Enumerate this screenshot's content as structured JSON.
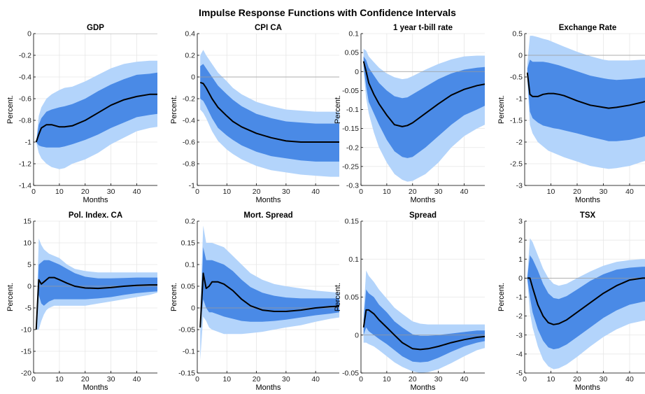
{
  "title": "Impulse Response Functions with Confidence Intervals",
  "colors": {
    "outer_band": "#b3d4fb",
    "inner_band": "#4a8ae6",
    "median": "#000000",
    "zero_line": "#9a9a9a",
    "grid": "#e6e6e6"
  },
  "chart_data": [
    {
      "type": "area",
      "title": "GDP",
      "xlabel": "Months",
      "ylabel": "Percent.",
      "xlim": [
        0,
        48
      ],
      "ylim": [
        -1.4,
        0
      ],
      "xticks": [
        0,
        10,
        20,
        30,
        40
      ],
      "yticks": [
        -1.4,
        -1.2,
        -1,
        -0.8,
        -0.6,
        -0.4,
        -0.2,
        0
      ],
      "x": [
        1,
        2,
        3,
        5,
        7,
        10,
        12,
        15,
        20,
        25,
        30,
        35,
        40,
        45,
        48
      ],
      "median": [
        -1.0,
        -0.93,
        -0.87,
        -0.84,
        -0.84,
        -0.86,
        -0.86,
        -0.85,
        -0.8,
        -0.73,
        -0.66,
        -0.61,
        -0.58,
        -0.56,
        -0.56
      ],
      "inner_lower": [
        -1.0,
        -1.03,
        -1.04,
        -1.05,
        -1.05,
        -1.05,
        -1.04,
        -1.02,
        -0.98,
        -0.93,
        -0.87,
        -0.82,
        -0.77,
        -0.75,
        -0.74
      ],
      "inner_upper": [
        -1.0,
        -0.84,
        -0.78,
        -0.72,
        -0.7,
        -0.68,
        -0.67,
        -0.65,
        -0.6,
        -0.53,
        -0.47,
        -0.42,
        -0.38,
        -0.37,
        -0.36
      ],
      "outer_lower": [
        -1.0,
        -1.1,
        -1.15,
        -1.2,
        -1.23,
        -1.25,
        -1.24,
        -1.2,
        -1.16,
        -1.1,
        -1.02,
        -0.96,
        -0.9,
        -0.87,
        -0.86
      ],
      "outer_upper": [
        -1.0,
        -0.76,
        -0.68,
        -0.6,
        -0.56,
        -0.52,
        -0.5,
        -0.49,
        -0.44,
        -0.38,
        -0.32,
        -0.28,
        -0.26,
        -0.25,
        -0.25
      ]
    },
    {
      "type": "area",
      "title": "CPI CA",
      "xlabel": "Months",
      "ylabel": "Percent.",
      "xlim": [
        0,
        48
      ],
      "ylim": [
        -1,
        0.4
      ],
      "xticks": [
        0,
        10,
        20,
        30,
        40
      ],
      "yticks": [
        -1,
        -0.8,
        -0.6,
        -0.4,
        -0.2,
        0,
        0.2,
        0.4
      ],
      "x": [
        1,
        2,
        3,
        5,
        7,
        10,
        12,
        15,
        20,
        25,
        30,
        35,
        40,
        45,
        48
      ],
      "median": [
        -0.05,
        -0.06,
        -0.1,
        -0.2,
        -0.28,
        -0.36,
        -0.41,
        -0.46,
        -0.52,
        -0.56,
        -0.59,
        -0.6,
        -0.6,
        -0.6,
        -0.6
      ],
      "inner_lower": [
        -0.2,
        -0.22,
        -0.27,
        -0.38,
        -0.47,
        -0.54,
        -0.58,
        -0.63,
        -0.69,
        -0.73,
        -0.75,
        -0.77,
        -0.78,
        -0.78,
        -0.78
      ],
      "inner_upper": [
        0.1,
        0.12,
        0.08,
        0.0,
        -0.08,
        -0.16,
        -0.21,
        -0.27,
        -0.34,
        -0.38,
        -0.41,
        -0.42,
        -0.43,
        -0.43,
        -0.43
      ],
      "outer_lower": [
        -0.3,
        -0.33,
        -0.38,
        -0.5,
        -0.59,
        -0.67,
        -0.71,
        -0.76,
        -0.82,
        -0.86,
        -0.88,
        -0.9,
        -0.91,
        -0.92,
        -0.92
      ],
      "outer_upper": [
        0.2,
        0.25,
        0.2,
        0.12,
        0.04,
        -0.04,
        -0.1,
        -0.16,
        -0.23,
        -0.27,
        -0.3,
        -0.31,
        -0.32,
        -0.32,
        -0.32
      ]
    },
    {
      "type": "area",
      "title": "1 year t-bill rate",
      "xlabel": "Months",
      "ylabel": "Percent.",
      "xlim": [
        0,
        48
      ],
      "ylim": [
        -0.3,
        0.1
      ],
      "xticks": [
        0,
        10,
        20,
        30,
        40
      ],
      "yticks": [
        -0.3,
        -0.25,
        -0.2,
        -0.15,
        -0.1,
        -0.05,
        0,
        0.05,
        0.1
      ],
      "x": [
        1,
        2,
        3,
        5,
        7,
        10,
        13,
        16,
        18,
        20,
        25,
        30,
        35,
        40,
        45,
        48
      ],
      "median": [
        0.027,
        0.0,
        -0.03,
        -0.06,
        -0.085,
        -0.115,
        -0.14,
        -0.145,
        -0.142,
        -0.135,
        -0.11,
        -0.085,
        -0.062,
        -0.047,
        -0.037,
        -0.033
      ],
      "inner_lower": [
        0.015,
        -0.04,
        -0.08,
        -0.11,
        -0.14,
        -0.18,
        -0.21,
        -0.225,
        -0.228,
        -0.225,
        -0.2,
        -0.17,
        -0.14,
        -0.115,
        -0.1,
        -0.09
      ],
      "inner_upper": [
        0.04,
        0.03,
        0.01,
        -0.01,
        -0.03,
        -0.05,
        -0.065,
        -0.07,
        -0.068,
        -0.06,
        -0.04,
        -0.02,
        -0.005,
        0.005,
        0.01,
        0.012
      ],
      "outer_lower": [
        0.0,
        -0.07,
        -0.11,
        -0.16,
        -0.2,
        -0.24,
        -0.27,
        -0.285,
        -0.29,
        -0.288,
        -0.27,
        -0.24,
        -0.2,
        -0.17,
        -0.15,
        -0.14
      ],
      "outer_upper": [
        0.06,
        0.055,
        0.04,
        0.025,
        0.01,
        -0.005,
        -0.015,
        -0.02,
        -0.018,
        -0.012,
        0.005,
        0.02,
        0.032,
        0.04,
        0.042,
        0.042
      ]
    },
    {
      "type": "area",
      "title": "Exchange Rate",
      "xlabel": "Months",
      "ylabel": "Percent.",
      "xlim": [
        0,
        48
      ],
      "ylim": [
        -3,
        0.5
      ],
      "xticks": [
        10,
        20,
        30,
        40
      ],
      "yticks": [
        -3,
        -2.5,
        -2,
        -1.5,
        -1,
        -0.5,
        0,
        0.5
      ],
      "x": [
        1,
        2,
        3,
        5,
        7,
        9,
        11,
        13,
        15,
        20,
        25,
        30,
        32,
        35,
        40,
        45,
        48
      ],
      "median": [
        -0.4,
        -0.9,
        -0.95,
        -0.95,
        -0.9,
        -0.88,
        -0.88,
        -0.9,
        -0.93,
        -1.05,
        -1.15,
        -1.2,
        -1.22,
        -1.2,
        -1.15,
        -1.08,
        -1.02
      ],
      "inner_lower": [
        -0.5,
        -1.3,
        -1.45,
        -1.55,
        -1.62,
        -1.65,
        -1.68,
        -1.7,
        -1.73,
        -1.8,
        -1.88,
        -1.95,
        -1.98,
        -1.98,
        -1.95,
        -1.88,
        -1.82
      ],
      "inner_upper": [
        -0.3,
        -0.1,
        -0.15,
        -0.15,
        -0.15,
        -0.17,
        -0.2,
        -0.23,
        -0.27,
        -0.37,
        -0.47,
        -0.53,
        -0.55,
        -0.57,
        -0.55,
        -0.52,
        -0.5
      ],
      "outer_lower": [
        -0.6,
        -1.6,
        -1.8,
        -2.0,
        -2.1,
        -2.2,
        -2.25,
        -2.3,
        -2.35,
        -2.45,
        -2.55,
        -2.6,
        -2.62,
        -2.6,
        -2.55,
        -2.45,
        -2.4
      ],
      "outer_upper": [
        -0.2,
        0.45,
        0.45,
        0.42,
        0.38,
        0.35,
        0.3,
        0.25,
        0.2,
        0.08,
        -0.02,
        -0.1,
        -0.12,
        -0.12,
        -0.12,
        -0.1,
        -0.1
      ]
    },
    {
      "type": "area",
      "title": "Pol. Index. CA",
      "xlabel": "Months",
      "ylabel": "Percent.",
      "xlim": [
        0,
        48
      ],
      "ylim": [
        -20,
        15
      ],
      "xticks": [
        0,
        10,
        20,
        30,
        40
      ],
      "yticks": [
        -20,
        -15,
        -10,
        -5,
        0,
        5,
        10,
        15
      ],
      "x": [
        1,
        2,
        3,
        4,
        5,
        6,
        8,
        10,
        13,
        16,
        20,
        25,
        30,
        35,
        40,
        45,
        48
      ],
      "median": [
        -10,
        1.5,
        0.5,
        1.0,
        1.5,
        2.0,
        2.0,
        1.5,
        0.7,
        0.0,
        -0.4,
        -0.5,
        -0.3,
        0.0,
        0.2,
        0.3,
        0.3
      ],
      "inner_lower": [
        -10,
        -2,
        -4,
        -4.5,
        -4,
        -3.5,
        -3,
        -3,
        -3,
        -3,
        -3,
        -2.8,
        -2.5,
        -2.0,
        -1.6,
        -1.3,
        -1.2
      ],
      "inner_upper": [
        -10,
        5,
        5.5,
        6,
        6,
        6,
        5.5,
        5,
        4,
        3,
        2.2,
        1.8,
        1.8,
        1.9,
        2.0,
        2.0,
        2.0
      ],
      "outer_lower": [
        -10,
        -10,
        -8,
        -6.5,
        -5.5,
        -5,
        -4.5,
        -4.5,
        -4.5,
        -4.5,
        -4.5,
        -4,
        -3.5,
        -3,
        -2.5,
        -2,
        -1.5
      ],
      "outer_upper": [
        -10,
        11,
        9.5,
        8.5,
        8,
        7.5,
        7,
        6.5,
        5,
        4,
        3.5,
        3.2,
        3.2,
        3.2,
        3.2,
        3.2,
        3.2
      ]
    },
    {
      "type": "area",
      "title": "Mort. Spread",
      "xlabel": "Months",
      "ylabel": "Percent.",
      "xlim": [
        0,
        48
      ],
      "ylim": [
        -0.15,
        0.2
      ],
      "xticks": [
        0,
        10,
        20,
        30,
        40
      ],
      "yticks": [
        -0.15,
        -0.1,
        -0.05,
        0,
        0.05,
        0.1,
        0.15,
        0.2
      ],
      "x": [
        1,
        2,
        3,
        4,
        5,
        7,
        9,
        12,
        15,
        18,
        22,
        26,
        30,
        35,
        40,
        45,
        48
      ],
      "median": [
        -0.045,
        0.08,
        0.045,
        0.05,
        0.06,
        0.06,
        0.055,
        0.04,
        0.02,
        0.005,
        -0.005,
        -0.008,
        -0.008,
        -0.005,
        0.0,
        0.003,
        0.004
      ],
      "inner_lower": [
        -0.045,
        0.02,
        0.0,
        -0.01,
        -0.01,
        -0.015,
        -0.02,
        -0.025,
        -0.03,
        -0.032,
        -0.032,
        -0.03,
        -0.027,
        -0.022,
        -0.017,
        -0.013,
        -0.01
      ],
      "inner_upper": [
        -0.045,
        0.14,
        0.11,
        0.11,
        0.11,
        0.105,
        0.1,
        0.085,
        0.065,
        0.048,
        0.035,
        0.028,
        0.024,
        0.022,
        0.022,
        0.022,
        0.022
      ],
      "outer_lower": [
        -0.12,
        -0.02,
        -0.03,
        -0.045,
        -0.05,
        -0.055,
        -0.06,
        -0.06,
        -0.06,
        -0.058,
        -0.055,
        -0.05,
        -0.045,
        -0.04,
        -0.032,
        -0.025,
        -0.022
      ],
      "outer_upper": [
        0.0,
        0.19,
        0.15,
        0.15,
        0.15,
        0.145,
        0.14,
        0.12,
        0.1,
        0.08,
        0.065,
        0.055,
        0.05,
        0.045,
        0.04,
        0.037,
        0.035
      ]
    },
    {
      "type": "area",
      "title": "Spread",
      "xlabel": "Months",
      "ylabel": "Percent.",
      "xlim": [
        0,
        48
      ],
      "ylim": [
        -0.05,
        0.15
      ],
      "xticks": [
        0,
        10,
        20,
        30,
        40
      ],
      "yticks": [
        -0.05,
        0,
        0.05,
        0.1,
        0.15
      ],
      "x": [
        1,
        2,
        3,
        5,
        7,
        10,
        13,
        16,
        20,
        23,
        26,
        30,
        35,
        40,
        45,
        48
      ],
      "median": [
        0.01,
        0.033,
        0.033,
        0.028,
        0.02,
        0.01,
        0.0,
        -0.01,
        -0.018,
        -0.019,
        -0.018,
        -0.015,
        -0.01,
        -0.006,
        -0.003,
        -0.002
      ],
      "inner_lower": [
        0.0,
        0.01,
        0.005,
        0.0,
        -0.005,
        -0.012,
        -0.02,
        -0.028,
        -0.035,
        -0.036,
        -0.035,
        -0.03,
        -0.022,
        -0.015,
        -0.01,
        -0.008
      ],
      "inner_upper": [
        0.02,
        0.06,
        0.055,
        0.05,
        0.04,
        0.03,
        0.018,
        0.01,
        0.001,
        -0.001,
        -0.001,
        0.0,
        0.002,
        0.004,
        0.006,
        0.006
      ],
      "outer_lower": [
        -0.01,
        -0.01,
        -0.012,
        -0.015,
        -0.02,
        -0.028,
        -0.036,
        -0.042,
        -0.048,
        -0.05,
        -0.049,
        -0.045,
        -0.037,
        -0.028,
        -0.02,
        -0.017
      ],
      "outer_upper": [
        0.03,
        0.085,
        0.078,
        0.07,
        0.06,
        0.048,
        0.036,
        0.028,
        0.018,
        0.015,
        0.014,
        0.014,
        0.014,
        0.014,
        0.014,
        0.014
      ]
    },
    {
      "type": "area",
      "title": "TSX",
      "xlabel": "Months",
      "ylabel": "Percent.",
      "xlim": [
        0,
        48
      ],
      "ylim": [
        -5,
        3
      ],
      "xticks": [
        0,
        10,
        20,
        30,
        40
      ],
      "yticks": [
        -5,
        -4,
        -3,
        -2,
        -1,
        0,
        1,
        2,
        3
      ],
      "x": [
        1,
        2,
        3,
        5,
        7,
        9,
        11,
        13,
        16,
        20,
        25,
        30,
        35,
        40,
        45,
        48
      ],
      "median": [
        0.0,
        0.0,
        -0.5,
        -1.4,
        -2.0,
        -2.35,
        -2.45,
        -2.4,
        -2.2,
        -1.8,
        -1.3,
        -0.8,
        -0.4,
        -0.1,
        0.0,
        0.0
      ],
      "inner_lower": [
        -0.05,
        -1.0,
        -1.8,
        -2.7,
        -3.3,
        -3.65,
        -3.75,
        -3.7,
        -3.5,
        -3.1,
        -2.6,
        -2.1,
        -1.7,
        -1.4,
        -1.25,
        -1.2
      ],
      "inner_upper": [
        0.05,
        1.2,
        1.0,
        0.4,
        -0.3,
        -0.8,
        -1.05,
        -1.1,
        -0.95,
        -0.6,
        -0.15,
        0.2,
        0.45,
        0.55,
        0.6,
        0.6
      ],
      "outer_lower": [
        -0.1,
        -1.8,
        -2.6,
        -3.6,
        -4.3,
        -4.65,
        -4.8,
        -4.75,
        -4.55,
        -4.15,
        -3.6,
        -3.1,
        -2.7,
        -2.4,
        -2.25,
        -2.2
      ],
      "outer_upper": [
        0.1,
        2.1,
        1.9,
        1.2,
        0.5,
        0.0,
        -0.3,
        -0.4,
        -0.3,
        0.0,
        0.35,
        0.65,
        0.85,
        0.95,
        1.0,
        1.0
      ]
    }
  ]
}
